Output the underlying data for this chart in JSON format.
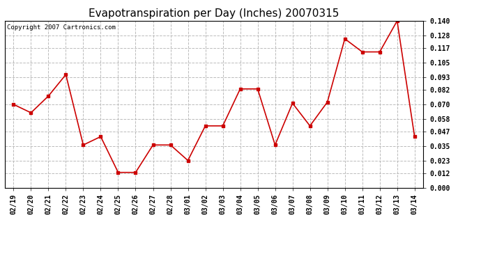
{
  "title": "Evapotranspiration per Day (Inches) 20070315",
  "copyright": "Copyright 2007 Cartronics.com",
  "x_labels": [
    "02/19",
    "02/20",
    "02/21",
    "02/22",
    "02/23",
    "02/24",
    "02/25",
    "02/26",
    "02/27",
    "02/28",
    "03/01",
    "03/02",
    "03/03",
    "03/04",
    "03/05",
    "03/06",
    "03/07",
    "03/08",
    "03/09",
    "03/10",
    "03/11",
    "03/12",
    "03/13",
    "03/14"
  ],
  "y_values": [
    0.07,
    0.063,
    0.077,
    0.095,
    0.036,
    0.043,
    0.013,
    0.013,
    0.036,
    0.036,
    0.023,
    0.052,
    0.052,
    0.083,
    0.083,
    0.036,
    0.071,
    0.052,
    0.072,
    0.125,
    0.114,
    0.114,
    0.14,
    0.043
  ],
  "line_color": "#cc0000",
  "marker": "s",
  "marker_size": 3,
  "y_min": 0.0,
  "y_max": 0.14,
  "y_ticks": [
    0.0,
    0.012,
    0.023,
    0.035,
    0.047,
    0.058,
    0.07,
    0.082,
    0.093,
    0.105,
    0.117,
    0.128,
    0.14
  ],
  "bg_color": "#ffffff",
  "plot_bg_color": "#ffffff",
  "grid_color": "#bbbbbb",
  "title_fontsize": 11,
  "tick_fontsize": 7,
  "copyright_fontsize": 6.5
}
